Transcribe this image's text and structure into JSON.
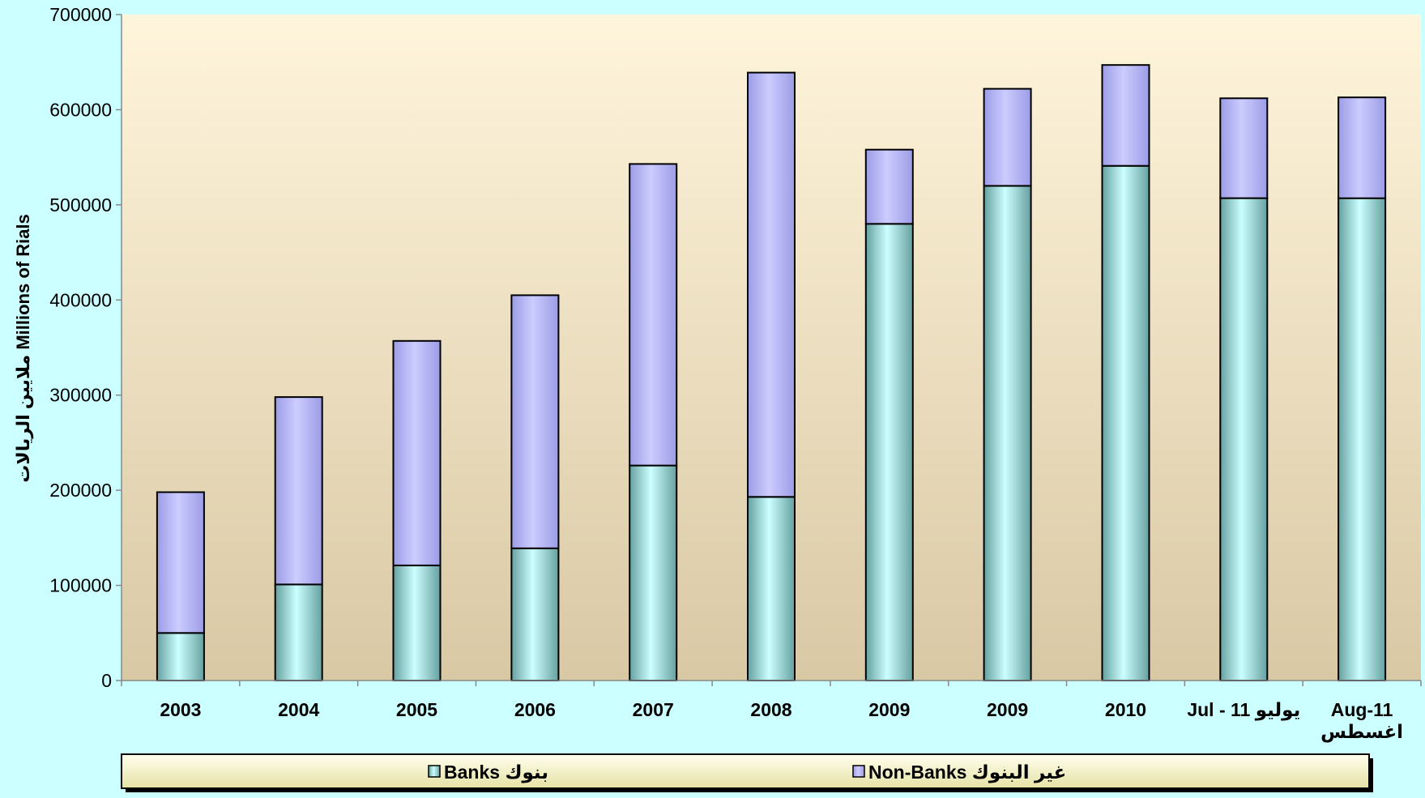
{
  "chart_data": {
    "type": "bar",
    "stacked": true,
    "title": "",
    "xlabel": "",
    "ylabel": "ملايين الريالات Millions of Rials",
    "ylim": [
      0,
      700000
    ],
    "yticks": [
      0,
      100000,
      200000,
      300000,
      400000,
      500000,
      600000,
      700000
    ],
    "grid": false,
    "legend_position": "bottom",
    "categories": [
      "2003",
      "2004",
      "2005",
      "2006",
      "2007",
      "2008",
      "2009",
      "2009",
      "2010",
      "Jul - 11 يوليو",
      "Aug-11 اغسطس"
    ],
    "category_lines": [
      [
        "2003"
      ],
      [
        "2004"
      ],
      [
        "2005"
      ],
      [
        "2006"
      ],
      [
        "2007"
      ],
      [
        "2008"
      ],
      [
        "2009"
      ],
      [
        "2009"
      ],
      [
        "2010"
      ],
      [
        "Jul - 11 يوليو"
      ],
      [
        "Aug-11",
        "اغسطس"
      ]
    ],
    "series": [
      {
        "name": "Banks بنوك",
        "color": "#ccffff",
        "values": [
          50000,
          101000,
          121000,
          139000,
          226000,
          193000,
          480000,
          520000,
          541000,
          507000,
          507000
        ]
      },
      {
        "name": "Non-Banks غير البنوك",
        "color": "#ccccff",
        "values": [
          148000,
          197000,
          236000,
          266000,
          317000,
          446000,
          78000,
          102000,
          106000,
          105000,
          106000
        ]
      }
    ]
  }
}
